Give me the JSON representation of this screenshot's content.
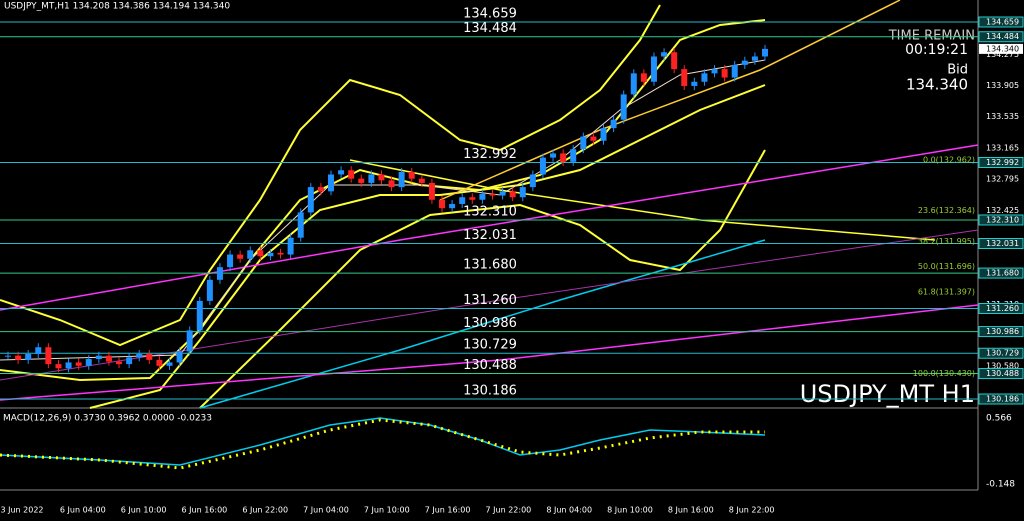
{
  "header": "USDJPY_MT,H1  134.208 134.386 134.194 134.340",
  "levels": [
    "134.659",
    "134.484",
    "132.992",
    "132.310",
    "132.031",
    "131.680",
    "131.260",
    "130.986",
    "130.729",
    "130.488",
    "130.186"
  ],
  "price_axis": [
    {
      "label": "134.659",
      "boxed": true
    },
    {
      "label": "134.484",
      "boxed": true
    },
    {
      "label": "134.275",
      "boxed": false
    },
    {
      "label": "133.905",
      "boxed": false
    },
    {
      "label": "133.535",
      "boxed": false
    },
    {
      "label": "133.165",
      "boxed": false
    },
    {
      "label": "132.992",
      "boxed": true
    },
    {
      "label": "132.795",
      "boxed": false
    },
    {
      "label": "132.425",
      "boxed": false
    },
    {
      "label": "132.310",
      "boxed": true
    },
    {
      "label": "132.031",
      "boxed": true
    },
    {
      "label": "131.680",
      "boxed": true
    },
    {
      "label": "131.310",
      "boxed": false
    },
    {
      "label": "131.260",
      "boxed": true
    },
    {
      "label": "130.986",
      "boxed": true
    },
    {
      "label": "130.729",
      "boxed": true
    },
    {
      "label": "130.580",
      "boxed": false
    },
    {
      "label": "130.488",
      "boxed": true
    },
    {
      "label": "130.186",
      "boxed": true
    }
  ],
  "bid_box": "134.340",
  "fib": [
    "0.0(132.962)",
    "23.6(132.364)",
    "38.2(131.995)",
    "50.0(131.696)",
    "61.8(131.397)",
    "100.0(130.430)"
  ],
  "panel": {
    "time_remain": "TIME REMAIN",
    "timer": "00:19:21",
    "bid_label": "Bid",
    "bid": "134.340",
    "symbol": "USDJPY_MT H1"
  },
  "macd": {
    "label": "MACD(12,26,9) 0.3730 0.3962 0.0000 -0.0233",
    "top": "0.566",
    "bottom": "-0.148"
  },
  "times": [
    "3 Jun 2022",
    "6 Jun 04:00",
    "6 Jun 10:00",
    "6 Jun 16:00",
    "6 Jun 22:00",
    "7 Jun 04:00",
    "7 Jun 10:00",
    "7 Jun 16:00",
    "7 Jun 22:00",
    "8 Jun 04:00",
    "8 Jun 10:00",
    "8 Jun 16:00",
    "8 Jun 22:00"
  ],
  "closes": [
    130.7,
    130.65,
    130.72,
    130.8,
    130.6,
    130.55,
    130.62,
    130.58,
    130.66,
    130.7,
    130.63,
    130.6,
    130.68,
    130.72,
    130.65,
    130.58,
    130.62,
    130.75,
    131.0,
    131.35,
    131.6,
    131.75,
    131.9,
    131.85,
    131.95,
    131.88,
    131.92,
    131.9,
    132.1,
    132.4,
    132.7,
    132.65,
    132.85,
    132.9,
    132.8,
    132.75,
    132.85,
    132.78,
    132.7,
    132.88,
    132.8,
    132.75,
    132.55,
    132.45,
    132.5,
    132.58,
    132.55,
    132.62,
    132.6,
    132.65,
    132.58,
    132.7,
    132.85,
    133.05,
    133.1,
    133.0,
    133.15,
    133.3,
    133.25,
    133.4,
    133.5,
    133.8,
    134.05,
    133.95,
    134.25,
    134.3,
    134.1,
    133.9,
    133.95,
    134.05,
    134.1,
    134.0,
    134.15,
    134.2,
    134.25,
    134.34
  ]
}
